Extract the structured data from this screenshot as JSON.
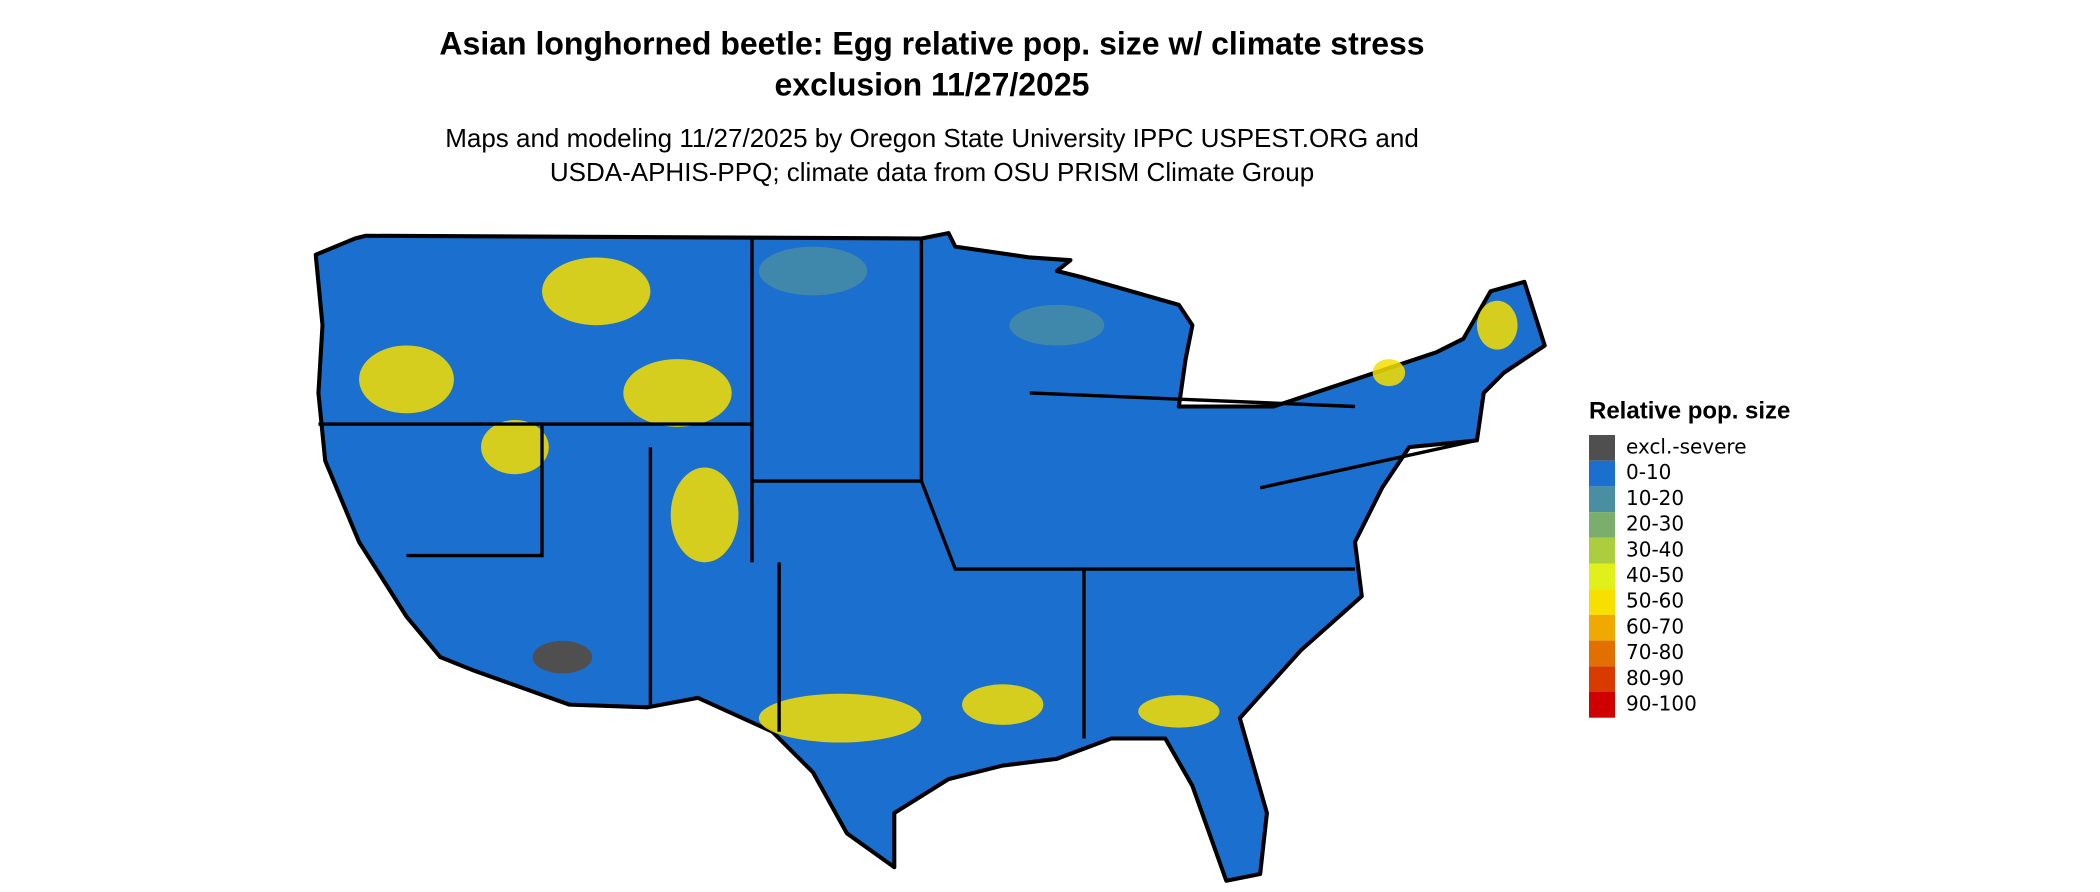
{
  "title_lines": [
    "Asian longhorned beetle: Egg relative pop. size w/ climate stress",
    "exclusion 11/27/2025"
  ],
  "subtitle_lines": [
    "Maps and modeling 11/27/2025 by Oregon State University IPPC USPEST.ORG and",
    "USDA-APHIS-PPQ; climate data from OSU PRISM Climate Group"
  ],
  "legend": {
    "title": "Relative pop. size",
    "items": [
      {
        "label": "excl.-severe",
        "color": "#4f4f4f"
      },
      {
        "label": "0-10",
        "color": "#1b6fce"
      },
      {
        "label": "10-20",
        "color": "#4a8ea2"
      },
      {
        "label": "20-30",
        "color": "#7bae6c"
      },
      {
        "label": "30-40",
        "color": "#abcd3e"
      },
      {
        "label": "40-50",
        "color": "#e1ef1b"
      },
      {
        "label": "50-60",
        "color": "#f7df00"
      },
      {
        "label": "60-70",
        "color": "#f0a900"
      },
      {
        "label": "70-80",
        "color": "#e27000"
      },
      {
        "label": "80-90",
        "color": "#d93a00"
      },
      {
        "label": "90-100",
        "color": "#d00000"
      }
    ]
  }
}
